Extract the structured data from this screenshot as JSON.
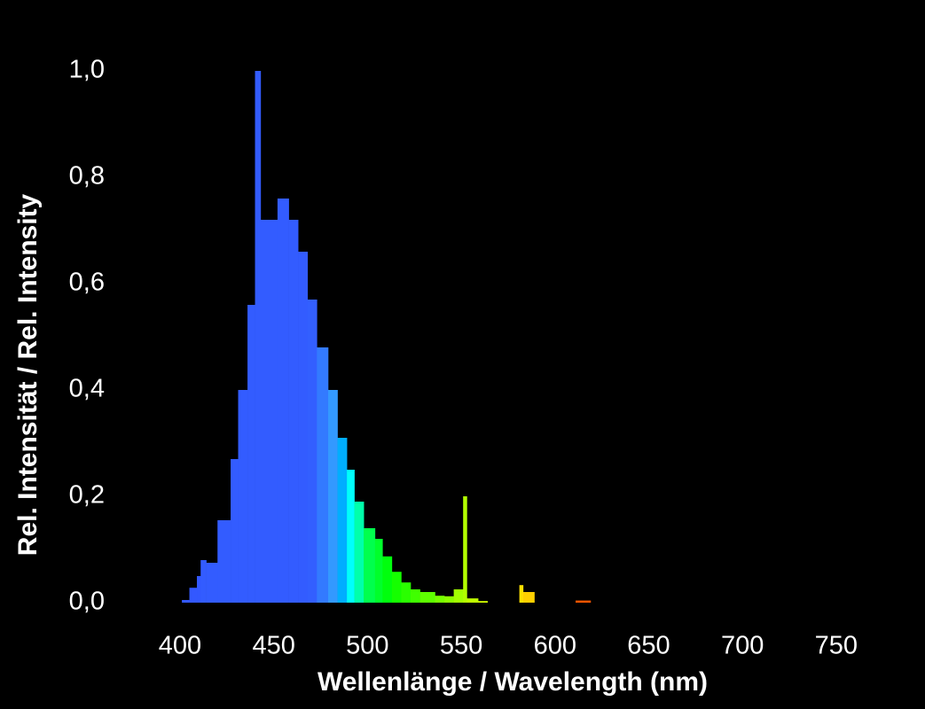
{
  "chart_data": {
    "type": "histogram",
    "xlabel": "Wellenlänge / Wavelength (nm)",
    "ylabel": "Rel. Intensität / Rel. Intensity",
    "bins": [
      401,
      405,
      409,
      411,
      414,
      420,
      427,
      431,
      436,
      440,
      443,
      452,
      458,
      463,
      468,
      473,
      479,
      484,
      489,
      493,
      498,
      504,
      508,
      513,
      518,
      523,
      528,
      536,
      541,
      546,
      551,
      553,
      559,
      564,
      581,
      583,
      589,
      611,
      619
    ],
    "values": [
      0.005,
      0.028,
      0.05,
      0.08,
      0.075,
      0.155,
      0.27,
      0.4,
      0.56,
      1.0,
      0.72,
      0.76,
      0.72,
      0.66,
      0.57,
      0.48,
      0.4,
      0.31,
      0.25,
      0.19,
      0.14,
      0.12,
      0.087,
      0.058,
      0.038,
      0.025,
      0.02,
      0.013,
      0.012,
      0.025,
      0.2,
      0.008,
      0.003,
      0,
      0.033,
      0.02,
      0,
      0.004
    ],
    "xlim": [
      380,
      780
    ],
    "ylim": [
      0,
      1.0
    ],
    "xticks": [
      400,
      450,
      500,
      550,
      600,
      650,
      700,
      750
    ],
    "yticks": [
      {
        "value": 0,
        "label": "0,0"
      },
      {
        "value": 0.2,
        "label": "0,2"
      },
      {
        "value": 0.4,
        "label": "0,4"
      },
      {
        "value": 0.6,
        "label": "0,6"
      },
      {
        "value": 0.8,
        "label": "0,8"
      },
      {
        "value": 1.0,
        "label": "1,0"
      }
    ],
    "grid": false
  }
}
